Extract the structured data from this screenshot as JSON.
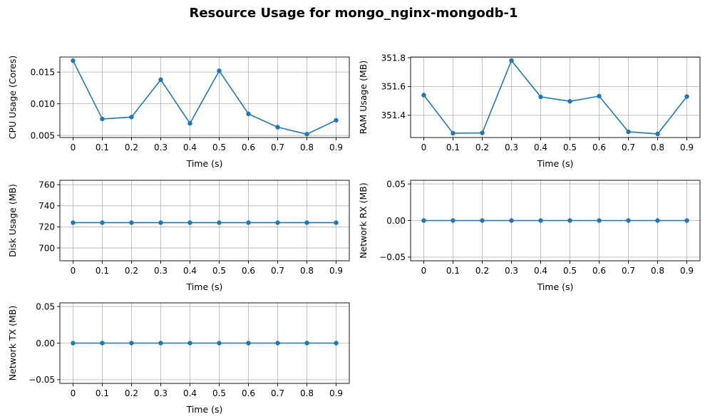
{
  "figure": {
    "title": "Resource Usage for mongo_nginx-mongodb-1",
    "line_color": "#1f77b4",
    "grid_color": "#b0b0b0"
  },
  "chart_data": [
    {
      "id": "cpu",
      "type": "line",
      "xlabel": "Time (s)",
      "ylabel": "CPU Usage (Cores)",
      "x": [
        0,
        0.1,
        0.2,
        0.3,
        0.4,
        0.5,
        0.6,
        0.7,
        0.8,
        0.9
      ],
      "x_tick_labels": [
        "0",
        "0.1",
        "0.2",
        "0.3",
        "0.4",
        "0.5",
        "0.6",
        "0.7",
        "0.8",
        "0.9"
      ],
      "y": [
        0.0168,
        0.0076,
        0.0079,
        0.0138,
        0.0069,
        0.0152,
        0.0084,
        0.0063,
        0.0052,
        0.0074
      ],
      "y_ticks": [
        0.005,
        0.01,
        0.015
      ],
      "y_tick_labels": [
        "0.005",
        "0.010",
        "0.015"
      ],
      "xlim": [
        -0.045,
        0.945
      ],
      "ylim": [
        0.00467,
        0.01738
      ],
      "grid": true,
      "marker": "circle"
    },
    {
      "id": "ram",
      "type": "line",
      "xlabel": "Time (s)",
      "ylabel": "RAM Usage (MB)",
      "x": [
        0,
        0.1,
        0.2,
        0.3,
        0.4,
        0.5,
        0.6,
        0.7,
        0.8,
        0.9
      ],
      "x_tick_labels": [
        "0",
        "0.1",
        "0.2",
        "0.3",
        "0.4",
        "0.5",
        "0.6",
        "0.7",
        "0.8",
        "0.9"
      ],
      "y": [
        351.54,
        351.275,
        351.277,
        351.78,
        351.528,
        351.497,
        351.533,
        351.285,
        351.27,
        351.53
      ],
      "y_ticks": [
        351.4,
        351.6,
        351.8
      ],
      "y_tick_labels": [
        "351.4",
        "351.6",
        "351.8"
      ],
      "xlim": [
        -0.045,
        0.945
      ],
      "ylim": [
        351.245,
        351.805
      ],
      "grid": true,
      "marker": "circle"
    },
    {
      "id": "disk",
      "type": "line",
      "xlabel": "Time (s)",
      "ylabel": "Disk Usage (MB)",
      "x": [
        0,
        0.1,
        0.2,
        0.3,
        0.4,
        0.5,
        0.6,
        0.7,
        0.8,
        0.9
      ],
      "x_tick_labels": [
        "0",
        "0.1",
        "0.2",
        "0.3",
        "0.4",
        "0.5",
        "0.6",
        "0.7",
        "0.8",
        "0.9"
      ],
      "y": [
        724,
        724,
        724,
        724,
        724,
        724,
        724,
        724,
        724,
        724
      ],
      "y_ticks": [
        700,
        720,
        740,
        760
      ],
      "y_tick_labels": [
        "700",
        "720",
        "740",
        "760"
      ],
      "xlim": [
        -0.045,
        0.945
      ],
      "ylim": [
        687.8,
        764.2
      ],
      "grid": true,
      "marker": "circle"
    },
    {
      "id": "netrx",
      "type": "line",
      "xlabel": "Time (s)",
      "ylabel": "Network RX (MB)",
      "x": [
        0,
        0.1,
        0.2,
        0.3,
        0.4,
        0.5,
        0.6,
        0.7,
        0.8,
        0.9
      ],
      "x_tick_labels": [
        "0",
        "0.1",
        "0.2",
        "0.3",
        "0.4",
        "0.5",
        "0.6",
        "0.7",
        "0.8",
        "0.9"
      ],
      "y": [
        0,
        0,
        0,
        0,
        0,
        0,
        0,
        0,
        0,
        0
      ],
      "y_ticks": [
        -0.05,
        0.0,
        0.05
      ],
      "y_tick_labels": [
        "−0.05",
        "0.00",
        "0.05"
      ],
      "xlim": [
        -0.045,
        0.945
      ],
      "ylim": [
        -0.055,
        0.055
      ],
      "grid": true,
      "marker": "circle"
    },
    {
      "id": "nettx",
      "type": "line",
      "xlabel": "Time (s)",
      "ylabel": "Network TX (MB)",
      "x": [
        0,
        0.1,
        0.2,
        0.3,
        0.4,
        0.5,
        0.6,
        0.7,
        0.8,
        0.9
      ],
      "x_tick_labels": [
        "0",
        "0.1",
        "0.2",
        "0.3",
        "0.4",
        "0.5",
        "0.6",
        "0.7",
        "0.8",
        "0.9"
      ],
      "y": [
        0,
        0,
        0,
        0,
        0,
        0,
        0,
        0,
        0,
        0
      ],
      "y_ticks": [
        -0.05,
        0.0,
        0.05
      ],
      "y_tick_labels": [
        "−0.05",
        "0.00",
        "0.05"
      ],
      "xlim": [
        -0.045,
        0.945
      ],
      "ylim": [
        -0.055,
        0.055
      ],
      "grid": true,
      "marker": "circle"
    }
  ]
}
